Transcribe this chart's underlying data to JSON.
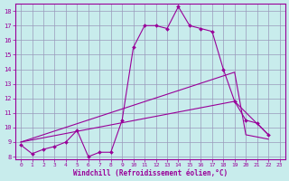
{
  "xlabel": "Windchill (Refroidissement éolien,°C)",
  "background_color": "#c8ecec",
  "line_color": "#990099",
  "xlim": [
    -0.5,
    23.5
  ],
  "ylim": [
    7.8,
    18.5
  ],
  "xticks": [
    0,
    1,
    2,
    3,
    4,
    5,
    6,
    7,
    8,
    9,
    10,
    11,
    12,
    13,
    14,
    15,
    16,
    17,
    18,
    19,
    20,
    21,
    22,
    23
  ],
  "yticks": [
    8,
    9,
    10,
    11,
    12,
    13,
    14,
    15,
    16,
    17,
    18
  ],
  "grid_color": "#9999bb",
  "series": [
    {
      "x": [
        0,
        1,
        2,
        3,
        4,
        5,
        6,
        7,
        8,
        9,
        10,
        11,
        12,
        13,
        14,
        15,
        16,
        17,
        18,
        19,
        20,
        21,
        22
      ],
      "y": [
        8.8,
        8.2,
        8.5,
        8.7,
        9.0,
        9.8,
        8.0,
        8.3,
        8.3,
        10.5,
        15.5,
        17.0,
        17.0,
        16.8,
        18.3,
        17.0,
        16.8,
        16.6,
        14.0,
        11.8,
        10.5,
        10.3,
        9.5
      ]
    },
    {
      "x": [
        0,
        19,
        20,
        22
      ],
      "y": [
        9.0,
        13.8,
        9.5,
        9.2
      ]
    },
    {
      "x": [
        0,
        19,
        22
      ],
      "y": [
        9.0,
        11.8,
        9.5
      ]
    }
  ]
}
